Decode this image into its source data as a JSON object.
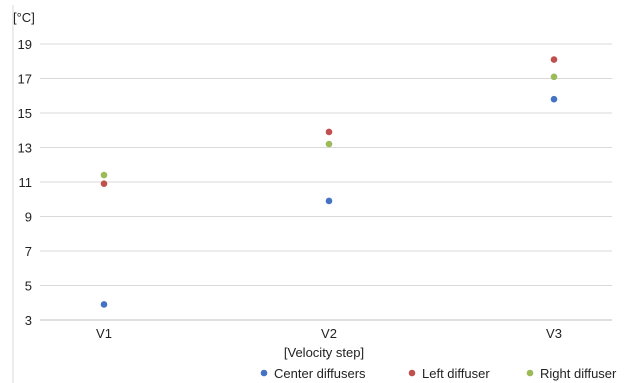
{
  "chart_data": {
    "type": "scatter",
    "title": "",
    "ylabel": "[°C]",
    "xlabel": "[Velocity step]",
    "categories": [
      "V1",
      "V2",
      "V3"
    ],
    "ylim": [
      3,
      19
    ],
    "yticks": [
      3,
      5,
      7,
      9,
      11,
      13,
      15,
      17,
      19
    ],
    "grid": true,
    "legend_position": "bottom",
    "series": [
      {
        "name": "Center diffusers",
        "color": "#4472c4",
        "values": [
          3.9,
          9.9,
          15.8
        ]
      },
      {
        "name": "Left diffuser",
        "color": "#c0504d",
        "values": [
          10.9,
          13.9,
          18.1
        ]
      },
      {
        "name": "Right diffuser",
        "color": "#9bbb59",
        "values": [
          11.4,
          13.2,
          17.1
        ]
      }
    ]
  }
}
